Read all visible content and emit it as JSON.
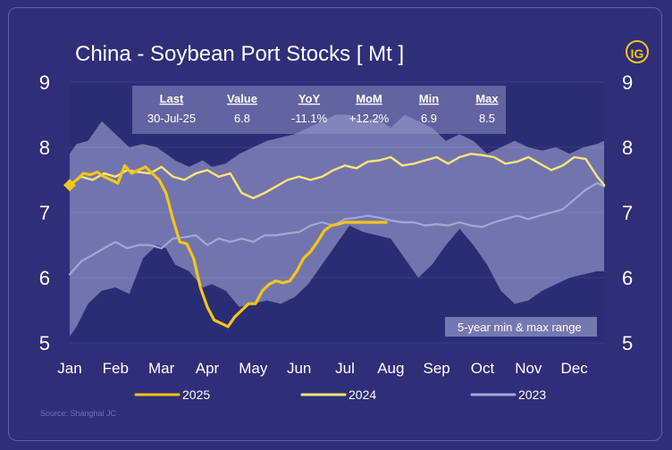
{
  "title": "China - Soybean Port Stocks [ Mt ]",
  "logo": "IG",
  "source": "Source: Shanghai JC",
  "stats": {
    "headers": [
      "Last",
      "Value",
      "YoY",
      "MoM",
      "Min",
      "Max"
    ],
    "values": [
      "30-Jul-25",
      "6.8",
      "-11.1%",
      "+12.2%",
      "6.9",
      "8.5"
    ]
  },
  "colors": {
    "background": "#2e2f78",
    "series_2025": "#f5c518",
    "series_2024": "#fbe675",
    "series_2023": "#a3a7d6",
    "range_band": "#8e91c4",
    "text": "#ffffff"
  },
  "chart_data": {
    "type": "line",
    "title": "China - Soybean Port Stocks [ Mt ]",
    "ylabel": "Mt",
    "xlabel": "",
    "ylim": [
      5,
      9
    ],
    "yticks": [
      5,
      6,
      7,
      8,
      9
    ],
    "x_range": [
      0,
      11.65
    ],
    "x_ticks": [
      0,
      1,
      2,
      3,
      4,
      5,
      6,
      7,
      8,
      9,
      10,
      11
    ],
    "categories": [
      "Jan",
      "Feb",
      "Mar",
      "Apr",
      "May",
      "Jun",
      "Jul",
      "Aug",
      "Sep",
      "Oct",
      "Nov",
      "Dec"
    ],
    "range_band": {
      "name": "5-year min & max range",
      "x": [
        0,
        0.15,
        0.4,
        0.7,
        1.0,
        1.3,
        1.6,
        1.9,
        2.1,
        2.3,
        2.6,
        2.9,
        3.1,
        3.4,
        3.7,
        4.0,
        4.3,
        4.6,
        4.9,
        5.2,
        5.5,
        5.8,
        6.1,
        6.4,
        6.7,
        7.0,
        7.3,
        7.6,
        7.9,
        8.2,
        8.5,
        8.8,
        9.1,
        9.4,
        9.7,
        10.0,
        10.3,
        10.6,
        10.9,
        11.2,
        11.5,
        11.65
      ],
      "max": [
        7.9,
        8.05,
        8.1,
        8.4,
        8.2,
        8.0,
        8.05,
        8.0,
        7.9,
        7.8,
        7.7,
        7.8,
        7.7,
        7.75,
        7.9,
        8.0,
        8.1,
        8.15,
        8.2,
        8.3,
        8.4,
        8.5,
        8.5,
        8.4,
        8.45,
        8.3,
        8.5,
        8.4,
        8.3,
        8.1,
        8.2,
        8.1,
        7.9,
        8.0,
        8.1,
        8.0,
        7.95,
        8.0,
        7.9,
        8.0,
        8.05,
        8.1
      ],
      "min": [
        5.1,
        5.25,
        5.6,
        5.8,
        5.85,
        5.75,
        6.3,
        6.5,
        6.45,
        6.2,
        6.1,
        5.85,
        5.9,
        5.8,
        5.55,
        5.6,
        5.65,
        5.6,
        5.7,
        5.9,
        6.2,
        6.5,
        6.8,
        6.7,
        6.65,
        6.6,
        6.3,
        6.0,
        6.2,
        6.5,
        6.75,
        6.5,
        6.2,
        5.8,
        5.6,
        5.65,
        5.8,
        5.9,
        6.0,
        6.05,
        6.1,
        6.1
      ]
    },
    "series": [
      {
        "name": "2025",
        "x": [
          0,
          0.15,
          0.3,
          0.45,
          0.6,
          0.75,
          0.9,
          1.05,
          1.2,
          1.35,
          1.5,
          1.65,
          1.8,
          1.95,
          2.1,
          2.25,
          2.4,
          2.55,
          2.7,
          2.85,
          3.0,
          3.15,
          3.3,
          3.45,
          3.6,
          3.75,
          3.9,
          4.05,
          4.2,
          4.35,
          4.5,
          4.65,
          4.8,
          4.95,
          5.1,
          5.25,
          5.4,
          5.55,
          5.7,
          5.85,
          6.0,
          6.15,
          6.3,
          6.45,
          6.6,
          6.75,
          6.9
        ],
        "values": [
          7.42,
          7.5,
          7.6,
          7.58,
          7.62,
          7.55,
          7.5,
          7.45,
          7.72,
          7.6,
          7.65,
          7.7,
          7.6,
          7.5,
          7.3,
          6.9,
          6.55,
          6.52,
          6.3,
          5.85,
          5.55,
          5.35,
          5.3,
          5.25,
          5.4,
          5.5,
          5.6,
          5.6,
          5.8,
          5.9,
          5.95,
          5.92,
          5.95,
          6.1,
          6.3,
          6.4,
          6.55,
          6.72,
          6.8,
          6.82,
          6.85,
          6.85,
          6.85,
          6.85,
          6.85,
          6.85,
          6.85
        ]
      },
      {
        "name": "2024",
        "x": [
          0,
          0.25,
          0.5,
          0.75,
          1.0,
          1.25,
          1.5,
          1.75,
          2.0,
          2.25,
          2.5,
          2.75,
          3.0,
          3.25,
          3.5,
          3.75,
          4.0,
          4.25,
          4.5,
          4.75,
          5.0,
          5.25,
          5.5,
          5.75,
          6.0,
          6.25,
          6.5,
          6.75,
          7.0,
          7.25,
          7.5,
          7.75,
          8.0,
          8.25,
          8.5,
          8.75,
          9.0,
          9.25,
          9.5,
          9.75,
          10.0,
          10.25,
          10.5,
          10.75,
          11.0,
          11.25,
          11.5,
          11.65
        ],
        "values": [
          7.42,
          7.55,
          7.5,
          7.6,
          7.55,
          7.65,
          7.62,
          7.6,
          7.7,
          7.55,
          7.5,
          7.6,
          7.65,
          7.55,
          7.6,
          7.3,
          7.22,
          7.3,
          7.4,
          7.5,
          7.55,
          7.5,
          7.55,
          7.65,
          7.72,
          7.68,
          7.78,
          7.8,
          7.85,
          7.72,
          7.75,
          7.8,
          7.85,
          7.75,
          7.85,
          7.9,
          7.88,
          7.85,
          7.75,
          7.78,
          7.85,
          7.75,
          7.65,
          7.72,
          7.85,
          7.82,
          7.55,
          7.42
        ]
      },
      {
        "name": "2023",
        "x": [
          0,
          0.25,
          0.5,
          0.75,
          1.0,
          1.25,
          1.5,
          1.75,
          2.0,
          2.25,
          2.5,
          2.75,
          3.0,
          3.25,
          3.5,
          3.75,
          4.0,
          4.25,
          4.5,
          4.75,
          5.0,
          5.25,
          5.5,
          5.75,
          6.0,
          6.25,
          6.5,
          6.75,
          7.0,
          7.25,
          7.5,
          7.75,
          8.0,
          8.25,
          8.5,
          8.75,
          9.0,
          9.25,
          9.5,
          9.75,
          10.0,
          10.25,
          10.5,
          10.75,
          11.0,
          11.25,
          11.5,
          11.65
        ],
        "values": [
          6.05,
          6.25,
          6.35,
          6.45,
          6.55,
          6.45,
          6.5,
          6.5,
          6.45,
          6.6,
          6.62,
          6.65,
          6.5,
          6.6,
          6.55,
          6.6,
          6.55,
          6.65,
          6.65,
          6.68,
          6.7,
          6.8,
          6.85,
          6.8,
          6.9,
          6.92,
          6.95,
          6.92,
          6.88,
          6.85,
          6.85,
          6.8,
          6.82,
          6.8,
          6.85,
          6.8,
          6.78,
          6.85,
          6.9,
          6.95,
          6.9,
          6.95,
          7.0,
          7.05,
          7.2,
          7.35,
          7.45,
          7.4
        ]
      }
    ],
    "last_marker": {
      "x": 0,
      "value": 7.42
    },
    "legend": [
      "2025",
      "2024",
      "2023"
    ],
    "range_label": "5-year min & max range",
    "legend_position": "bottom"
  }
}
